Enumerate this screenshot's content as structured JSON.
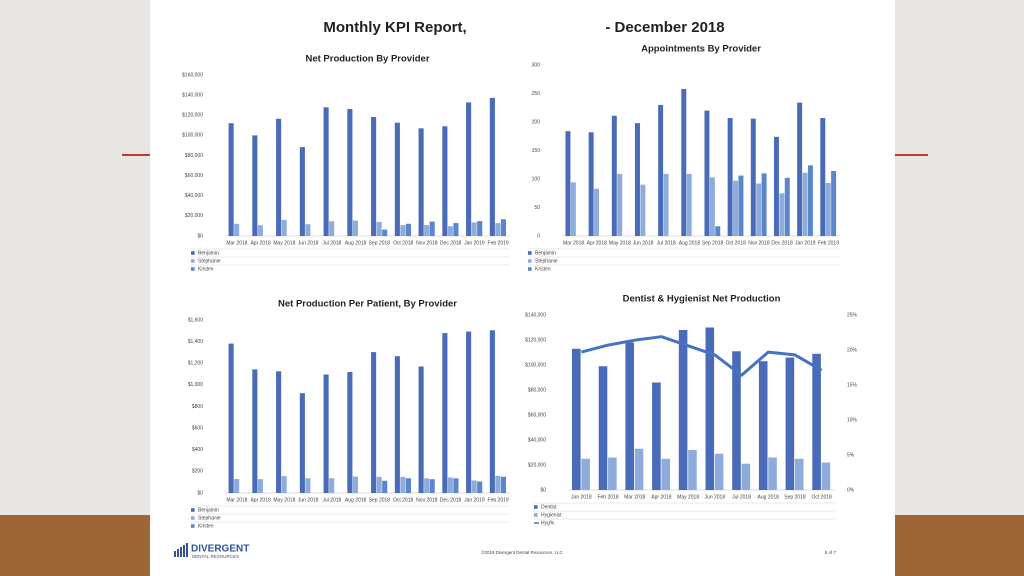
{
  "slide": {
    "title": "Monthly KPI Report,",
    "title_date": "- December 2018",
    "logo": "DIVERGENT",
    "logo_sub": "DENTAL RESOURCES",
    "copyright": "©2019 Divergent Dental Resources, LLC",
    "page": "5 of 7"
  },
  "chart_data": [
    {
      "type": "bar",
      "title": "Net Production By Provider",
      "grid": false,
      "categories": [
        "Mar 2018",
        "Apr 2018",
        "May 2018",
        "Jun 2018",
        "Jul 2018",
        "Aug 2018",
        "Sep 2018",
        "Oct 2018",
        "Nov 2018",
        "Dec 2018",
        "Jan 2019",
        "Feb 2019"
      ],
      "ylim": [
        0,
        160000
      ],
      "yticks": [
        {
          "value": 0,
          "label": "$0"
        },
        {
          "value": 20000,
          "label": "$20,000"
        },
        {
          "value": 40000,
          "label": "$40,000"
        },
        {
          "value": 60000,
          "label": "$60,000"
        },
        {
          "value": 80000,
          "label": "$80,000"
        },
        {
          "value": 100000,
          "label": "$100,000"
        },
        {
          "value": 120000,
          "label": "$120,000"
        },
        {
          "value": 140000,
          "label": "$140,000"
        },
        {
          "value": 160000,
          "label": "$160,000"
        }
      ],
      "series": [
        {
          "name": "Benjamin",
          "color": "#4a6cb8",
          "values": [
            112101,
            99999,
            116466,
            88366,
            127889,
            126249,
            118268,
            112596,
            106995,
            109062,
            132811,
            137262
          ]
        },
        {
          "name": "Stephanie",
          "color": "#8eacdb",
          "values": [
            12151,
            10669,
            16026,
            11767,
            14697,
            15340,
            14011,
            10842,
            10869,
            9701,
            13468,
            12767
          ]
        },
        {
          "name": "Kristen",
          "color": "#5b86cc",
          "values": [
            null,
            null,
            null,
            null,
            null,
            null,
            6357,
            12159,
            14386,
            12869,
            14792,
            16661
          ]
        }
      ]
    },
    {
      "type": "bar",
      "title": "Appointments By Provider",
      "grid": false,
      "categories": [
        "Mar 2018",
        "Apr 2018",
        "May 2018",
        "Jun 2018",
        "Jul 2018",
        "Aug 2018",
        "Sep 2018",
        "Oct 2018",
        "Nov 2018",
        "Dec 2018",
        "Jan 2019",
        "Feb 2019"
      ],
      "ylim": [
        0,
        300
      ],
      "yticks": [
        0,
        50,
        100,
        150,
        200,
        250,
        300
      ],
      "series": [
        {
          "name": "Benjamin",
          "color": "#4a6cb8",
          "values": [
            184,
            182,
            211,
            198,
            230,
            258,
            220,
            207,
            206,
            174,
            234,
            207
          ]
        },
        {
          "name": "Stephanie",
          "color": "#8eacdb",
          "values": [
            94,
            83,
            109,
            90,
            109,
            109,
            103,
            97,
            92,
            75,
            111,
            93
          ]
        },
        {
          "name": "Kristen",
          "color": "#5b86cc",
          "values": [
            null,
            null,
            null,
            null,
            null,
            null,
            17,
            106,
            110,
            102,
            124,
            114
          ]
        }
      ]
    },
    {
      "type": "bar",
      "title": "Net Production Per Patient, By Provider",
      "grid": false,
      "categories": [
        "Mar 2018",
        "Apr 2018",
        "May 2018",
        "Jun 2018",
        "Jul 2018",
        "Aug 2018",
        "Sep 2018",
        "Oct 2018",
        "Nov 2018",
        "Dec 2018",
        "Jan 2019",
        "Feb 2019"
      ],
      "ylim": [
        0,
        1600
      ],
      "yticks": [
        {
          "value": 0,
          "label": "$0"
        },
        {
          "value": 200,
          "label": "$200"
        },
        {
          "value": 400,
          "label": "$400"
        },
        {
          "value": 600,
          "label": "$600"
        },
        {
          "value": 800,
          "label": "$800"
        },
        {
          "value": 1000,
          "label": "$1,000"
        },
        {
          "value": 1200,
          "label": "$1,200"
        },
        {
          "value": 1400,
          "label": "$1,400"
        },
        {
          "value": 1600,
          "label": "$1,600"
        }
      ],
      "series": [
        {
          "name": "Benjamin",
          "color": "#4a6cb8",
          "values": [
            1382,
            1143,
            1126,
            923,
            1096,
            1119,
            1303,
            1265,
            1170,
            1479,
            1493,
            1505
          ]
        },
        {
          "name": "Stephanie",
          "color": "#8eacdb",
          "values": [
            130,
            128,
            156,
            137,
            137,
            152,
            149,
            149,
            136,
            144,
            116,
            158
          ]
        },
        {
          "name": "Kristen",
          "color": "#5b86cc",
          "values": [
            null,
            null,
            null,
            null,
            null,
            null,
            113,
            136,
            128,
            136,
            106,
            150
          ]
        }
      ]
    },
    {
      "type": "combo",
      "title": "Dentist & Hygienist Net Production",
      "grid": false,
      "categories": [
        "Jan 2018",
        "Feb 2018",
        "Mar 2018",
        "Apr 2018",
        "May 2018",
        "Jun 2018",
        "Jul 2018",
        "Aug 2018",
        "Sep 2018",
        "Oct 2018"
      ],
      "ylim": [
        0,
        140000
      ],
      "yticks": [
        {
          "value": 0,
          "label": "$0"
        },
        {
          "value": 20000,
          "label": "$20,000"
        },
        {
          "value": 40000,
          "label": "$40,000"
        },
        {
          "value": 60000,
          "label": "$60,000"
        },
        {
          "value": 80000,
          "label": "$80,000"
        },
        {
          "value": 100000,
          "label": "$100,000"
        },
        {
          "value": 120000,
          "label": "$120,000"
        },
        {
          "value": 140000,
          "label": "$140,000"
        }
      ],
      "y2lim": [
        0,
        25
      ],
      "y2ticks": [
        {
          "value": 0,
          "label": "0%"
        },
        {
          "value": 5,
          "label": "5%"
        },
        {
          "value": 10,
          "label": "10%"
        },
        {
          "value": 15,
          "label": "15%"
        },
        {
          "value": 20,
          "label": "20%"
        },
        {
          "value": 25,
          "label": "25%"
        }
      ],
      "series": [
        {
          "name": "Dentist",
          "color": "#4a6cb8",
          "values": [
            113000,
            99000,
            118000,
            86000,
            128000,
            130000,
            111000,
            103000,
            106000,
            109000
          ]
        },
        {
          "name": "Hygienist",
          "color": "#8eacdb",
          "values": [
            25000,
            26000,
            33000,
            25000,
            32000,
            29000,
            21000,
            26000,
            25000,
            22000
          ]
        },
        {
          "name": "Hyg%",
          "color": "#4472c4",
          "type": "line",
          "axis": "y2",
          "values": [
            19.7,
            20.7,
            21.4,
            21.9,
            20.6,
            19.3,
            16.4,
            19.7,
            19.3,
            17.1
          ]
        }
      ]
    }
  ]
}
